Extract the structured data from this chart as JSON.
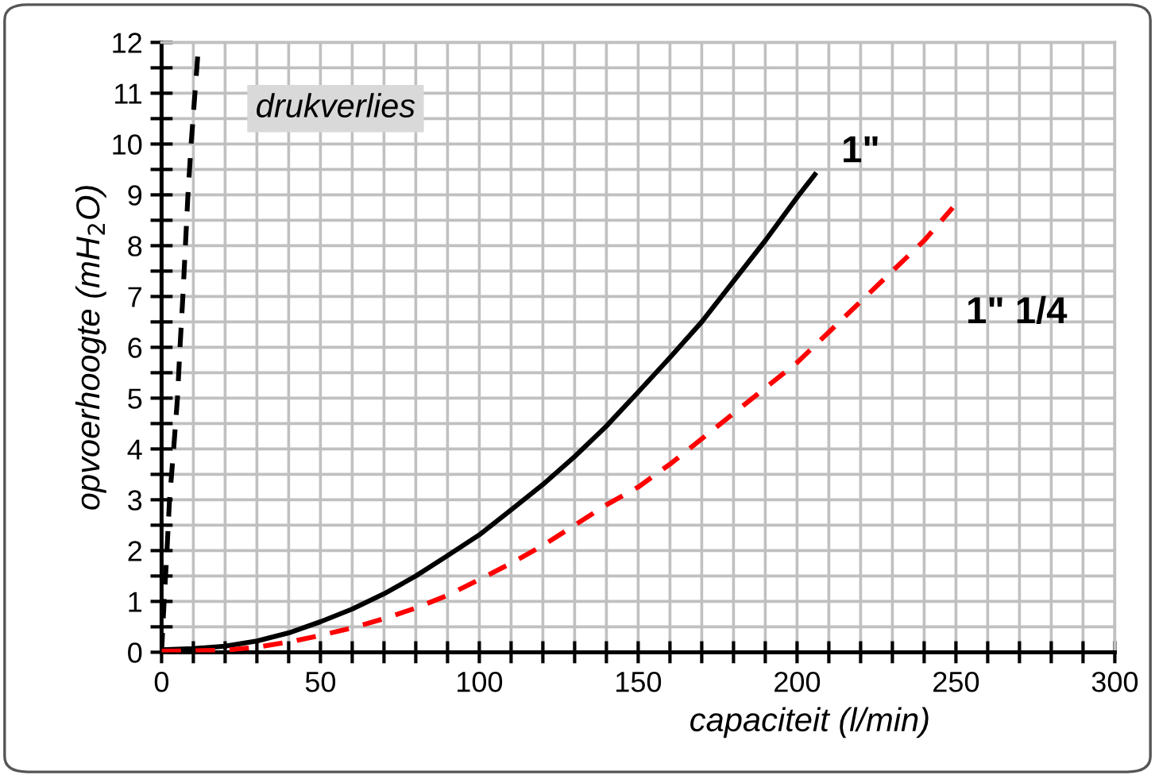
{
  "chart_data": {
    "type": "line",
    "xlabel": "capaciteit (l/min)",
    "ylabel": "opvoerhoogte (mH$_{2}$O)",
    "xlim": [
      0,
      300
    ],
    "ylim": [
      0,
      12
    ],
    "xticks": [
      0,
      {
        "value": 10,
        "label": null
      },
      {
        "value": 20,
        "label": null
      },
      {
        "value": 30,
        "label": null
      },
      {
        "value": 40,
        "label": null
      },
      50,
      {
        "value": 60,
        "label": null
      },
      {
        "value": 70,
        "label": null
      },
      {
        "value": 80,
        "label": null
      },
      {
        "value": 90,
        "label": null
      },
      100,
      {
        "value": 110,
        "label": null
      },
      {
        "value": 120,
        "label": null
      },
      {
        "value": 130,
        "label": null
      },
      {
        "value": 140,
        "label": null
      },
      150,
      {
        "value": 160,
        "label": null
      },
      {
        "value": 170,
        "label": null
      },
      {
        "value": 180,
        "label": null
      },
      {
        "value": 190,
        "label": null
      },
      200,
      {
        "value": 210,
        "label": null
      },
      {
        "value": 220,
        "label": null
      },
      {
        "value": 230,
        "label": null
      },
      {
        "value": 240,
        "label": null
      },
      250,
      {
        "value": 260,
        "label": null
      },
      {
        "value": 270,
        "label": null
      },
      {
        "value": 280,
        "label": null
      },
      {
        "value": 290,
        "label": null
      },
      300
    ],
    "yticks": [
      0,
      {
        "value": 0.5,
        "label": null
      },
      1,
      {
        "value": 1.5,
        "label": null
      },
      2,
      {
        "value": 2.5,
        "label": null
      },
      3,
      {
        "value": 3.5,
        "label": null
      },
      4,
      {
        "value": 4.5,
        "label": null
      },
      5,
      {
        "value": 5.5,
        "label": null
      },
      6,
      {
        "value": 6.5,
        "label": null
      },
      7,
      {
        "value": 7.5,
        "label": null
      },
      8,
      {
        "value": 8.5,
        "label": null
      },
      9,
      {
        "value": 9.5,
        "label": null
      },
      10,
      {
        "value": 10.5,
        "label": null
      },
      11,
      {
        "value": 11.5,
        "label": null
      },
      12
    ],
    "grid": true,
    "legend": false,
    "marker": "none",
    "series": [
      {
        "name": "drukverlies",
        "color": "#000000",
        "line_style": "dashed",
        "x": [
          0,
          0.8,
          1.7,
          2.5,
          3.8,
          5,
          5.8,
          6.7,
          7.5,
          8.3,
          9.3,
          10.5,
          11.7
        ],
        "values": [
          0,
          1,
          2,
          3,
          4,
          5,
          6,
          7,
          8,
          9,
          10,
          11,
          12
        ]
      },
      {
        "name": "1\"",
        "color": "#000000",
        "line_style": "solid",
        "x": [
          0,
          10,
          20,
          30,
          40,
          50,
          60,
          70,
          80,
          90,
          100,
          110,
          120,
          130,
          140,
          150,
          160,
          170,
          180,
          190,
          200,
          205.6
        ],
        "values": [
          0.05,
          0.07,
          0.12,
          0.22,
          0.38,
          0.6,
          0.85,
          1.15,
          1.5,
          1.9,
          2.31,
          2.8,
          3.3,
          3.85,
          4.45,
          5.12,
          5.8,
          6.5,
          7.3,
          8.1,
          8.95,
          9.4
        ]
      },
      {
        "name": "1\" 1/4",
        "color": "#ff0000",
        "line_style": "dashed",
        "x": [
          0,
          20,
          30,
          40,
          50,
          60,
          70,
          80,
          90,
          100,
          110,
          120,
          130,
          140,
          150,
          160,
          170,
          180,
          190,
          200,
          210,
          220,
          230,
          240,
          249
        ],
        "values": [
          0.02,
          0.04,
          0.1,
          0.2,
          0.33,
          0.48,
          0.66,
          0.87,
          1.12,
          1.43,
          1.75,
          2.1,
          2.5,
          2.9,
          3.25,
          3.7,
          4.2,
          4.7,
          5.2,
          5.7,
          6.3,
          6.9,
          7.5,
          8.1,
          8.75
        ]
      }
    ]
  }
}
